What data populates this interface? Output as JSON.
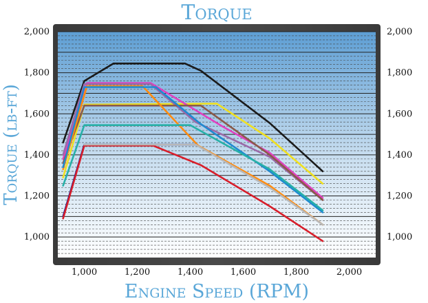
{
  "chart_data": {
    "type": "line",
    "title": "Torque",
    "xlabel": "Engine Speed (RPM)",
    "ylabel": "Torque (lb-ft)",
    "xlim": [
      900,
      2100
    ],
    "ylim": [
      900,
      2000
    ],
    "x_ticks": [
      "1,000",
      "1,200",
      "1,400",
      "1,600",
      "1,800",
      "2,000"
    ],
    "y_ticks": [
      "1,000",
      "1,200",
      "1,400",
      "1,600",
      "1,800",
      "2,000"
    ],
    "y_ticks_right": [
      "1,000",
      "1,200",
      "1,400",
      "1,600",
      "1,800",
      "2,000"
    ],
    "grid": true,
    "legend": "none",
    "series": [
      {
        "color": "#1a1a1a",
        "points": [
          [
            920,
            1460
          ],
          [
            1000,
            1760
          ],
          [
            1110,
            1845
          ],
          [
            1380,
            1845
          ],
          [
            1440,
            1810
          ],
          [
            1700,
            1555
          ],
          [
            1900,
            1320
          ]
        ]
      },
      {
        "color": "#f0e020",
        "points": [
          [
            920,
            1290
          ],
          [
            1000,
            1645
          ],
          [
            1500,
            1650
          ],
          [
            1700,
            1480
          ],
          [
            1900,
            1260
          ]
        ]
      },
      {
        "color": "#e040c0",
        "points": [
          [
            920,
            1380
          ],
          [
            1010,
            1750
          ],
          [
            1250,
            1750
          ],
          [
            1520,
            1540
          ],
          [
            1700,
            1410
          ],
          [
            1900,
            1190
          ]
        ]
      },
      {
        "color": "#9a6aa8",
        "points": [
          [
            920,
            1400
          ],
          [
            1000,
            1745
          ],
          [
            1250,
            1745
          ],
          [
            1420,
            1560
          ],
          [
            1700,
            1390
          ],
          [
            1900,
            1180
          ]
        ]
      },
      {
        "color": "#8a5a4a",
        "points": [
          [
            920,
            1360
          ],
          [
            1000,
            1640
          ],
          [
            1440,
            1640
          ],
          [
            1700,
            1400
          ],
          [
            1900,
            1180
          ]
        ]
      },
      {
        "color": "#ff8c10",
        "points": [
          [
            920,
            1330
          ],
          [
            1010,
            1735
          ],
          [
            1220,
            1735
          ],
          [
            1430,
            1445
          ],
          [
            1700,
            1250
          ],
          [
            1900,
            1060
          ]
        ]
      },
      {
        "color": "#1f8ad0",
        "points": [
          [
            920,
            1340
          ],
          [
            1000,
            1730
          ],
          [
            1270,
            1730
          ],
          [
            1440,
            1550
          ],
          [
            1700,
            1320
          ],
          [
            1900,
            1120
          ]
        ]
      },
      {
        "color": "#27b0a8",
        "points": [
          [
            920,
            1250
          ],
          [
            1000,
            1545
          ],
          [
            1400,
            1545
          ],
          [
            1700,
            1330
          ],
          [
            1900,
            1130
          ]
        ]
      },
      {
        "color": "#1a1a90",
        "points": [
          [
            920,
            1100
          ],
          [
            1000,
            1450
          ],
          [
            1420,
            1450
          ]
        ]
      },
      {
        "color": "#d81e2a",
        "points": [
          [
            920,
            1090
          ],
          [
            1000,
            1445
          ],
          [
            1260,
            1445
          ],
          [
            1440,
            1350
          ],
          [
            1700,
            1150
          ],
          [
            1900,
            980
          ]
        ]
      },
      {
        "color": "#b8b8b8",
        "points": [
          [
            1000,
            1450
          ],
          [
            1420,
            1450
          ],
          [
            1700,
            1240
          ],
          [
            1900,
            1060
          ]
        ]
      }
    ]
  }
}
